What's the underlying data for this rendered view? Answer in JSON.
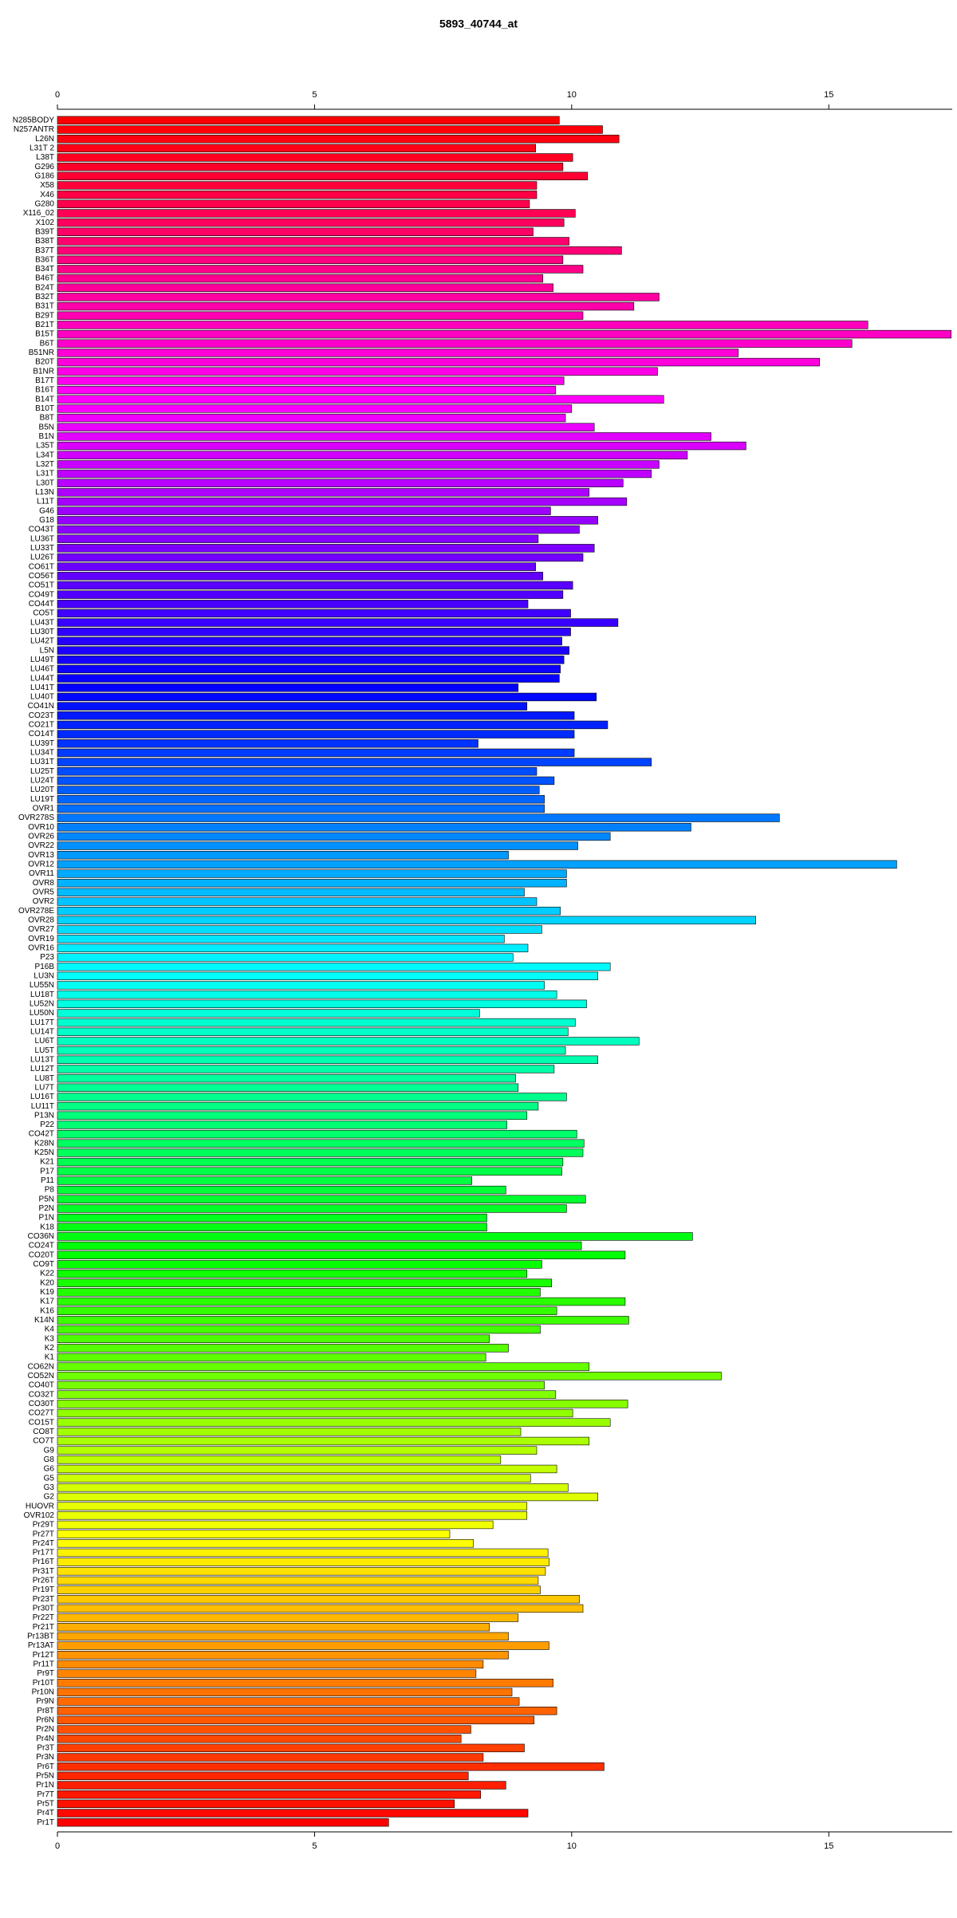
{
  "chart_data": {
    "type": "barh",
    "title": "5893_40744_at",
    "categories": [
      "N285BODY",
      "N257ANTR",
      "L26N",
      "L31T 2",
      "L38T",
      "G296",
      "G186",
      "X58",
      "X46",
      "G280",
      "X116_02",
      "X102",
      "B39T",
      "B38T",
      "B37T",
      "B36T",
      "B34T",
      "B46T",
      "B24T",
      "B32T",
      "B31T",
      "B29T",
      "B21T",
      "B15T",
      "B6T",
      "B51NR",
      "B20T",
      "B1NR",
      "B17T",
      "B16T",
      "B14T",
      "B10T",
      "B8T",
      "B5N",
      "B1N",
      "L35T",
      "L34T",
      "L32T",
      "L31T",
      "L30T",
      "L13N",
      "L11T",
      "G46",
      "G18",
      "CO43T",
      "LU36T",
      "LU33T",
      "LU26T",
      "CO61T",
      "CO56T",
      "CO51T",
      "CO49T",
      "CO44T",
      "CO5T",
      "LU43T",
      "LU30T",
      "LU42T",
      "L5N",
      "LU49T",
      "LU46T",
      "LU44T",
      "LU41T",
      "LU40T",
      "CO41N",
      "CO23T",
      "CO21T",
      "CO14T",
      "LU39T",
      "LU34T",
      "LU31T",
      "LU25T",
      "LU24T",
      "LU20T",
      "LU19T",
      "OVR1",
      "OVR278S",
      "OVR10",
      "OVR26",
      "OVR22",
      "OVR13",
      "OVR12",
      "OVR11",
      "OVR8",
      "OVR5",
      "OVR2",
      "OVR278E",
      "OVR28",
      "OVR27",
      "OVR19",
      "OVR16",
      "P23",
      "P16B",
      "LU3N",
      "LU55N",
      "LU18T",
      "LU52N",
      "LU50N",
      "LU17T",
      "LU14T",
      "LU6T",
      "LU5T",
      "LU13T",
      "LU12T",
      "LU8T",
      "LU7T",
      "LU16T",
      "LU11T",
      "P13N",
      "P22",
      "CO42T",
      "K28N",
      "K25N",
      "K21",
      "P17",
      "P11",
      "P8",
      "P5N",
      "P2N",
      "P1N",
      "K18",
      "CO36N",
      "CO24T",
      "CO20T",
      "CO9T",
      "K22",
      "K20",
      "K19",
      "K17",
      "K16",
      "K14N",
      "K4",
      "K3",
      "K2",
      "K1",
      "CO62N",
      "CO52N",
      "CO40T",
      "CO32T",
      "CO30T",
      "CO27T",
      "CO15T",
      "CO8T",
      "CO7T",
      "G9",
      "G8",
      "G6",
      "G5",
      "G3",
      "G2",
      "HUOVR",
      "OVR102",
      "Pr29T",
      "Pr27T",
      "Pr24T",
      "Pr17T",
      "Pr16T",
      "Pr31T",
      "Pr26T",
      "Pr19T",
      "Pr23T",
      "Pr30T",
      "Pr22T",
      "Pr21T",
      "Pr13BT",
      "Pr13AT",
      "Pr12T",
      "Pr11T",
      "Pr9T",
      "Pr10T",
      "Pr10N",
      "Pr9N",
      "Pr8T",
      "Pr6N",
      "Pr2N",
      "Pr4N",
      "Pr3T",
      "Pr3N",
      "Pr6T",
      "Pr5N",
      "Pr1N",
      "Pr7T",
      "Pr5T",
      "Pr4T",
      "Pr1T"
    ],
    "values": [
      9.76,
      10.6,
      10.92,
      9.3,
      10.02,
      9.83,
      10.31,
      9.32,
      9.32,
      9.18,
      10.07,
      9.85,
      9.25,
      9.95,
      10.97,
      9.83,
      10.22,
      9.44,
      9.64,
      11.7,
      11.21,
      10.22,
      15.76,
      17.38,
      15.45,
      13.24,
      14.82,
      11.67,
      9.85,
      9.69,
      11.79,
      10.0,
      9.88,
      10.44,
      12.71,
      13.39,
      12.25,
      11.7,
      11.55,
      11.0,
      10.34,
      11.07,
      9.59,
      10.51,
      10.15,
      9.35,
      10.44,
      10.22,
      9.3,
      9.44,
      10.02,
      9.83,
      9.15,
      9.98,
      10.9,
      9.98,
      9.81,
      9.95,
      9.85,
      9.78,
      9.76,
      8.96,
      10.48,
      9.13,
      10.05,
      10.7,
      10.05,
      8.18,
      10.05,
      11.55,
      9.32,
      9.66,
      9.37,
      9.47,
      9.47,
      14.04,
      12.32,
      10.75,
      10.12,
      8.77,
      16.32,
      9.9,
      9.9,
      9.08,
      9.32,
      9.78,
      13.58,
      9.42,
      8.69,
      9.15,
      8.86,
      10.75,
      10.51,
      9.47,
      9.71,
      10.29,
      8.21,
      10.07,
      9.93,
      11.31,
      9.88,
      10.51,
      9.66,
      8.91,
      8.96,
      9.9,
      9.35,
      9.13,
      8.74,
      10.1,
      10.24,
      10.22,
      9.83,
      9.81,
      8.06,
      8.72,
      10.27,
      9.9,
      8.35,
      8.35,
      12.35,
      10.19,
      11.04,
      9.42,
      9.13,
      9.61,
      9.39,
      11.04,
      9.71,
      11.11,
      9.39,
      8.4,
      8.77,
      8.33,
      10.34,
      12.91,
      9.47,
      9.69,
      11.09,
      10.02,
      10.75,
      9.01,
      10.34,
      9.32,
      8.62,
      9.71,
      9.2,
      9.93,
      10.51,
      9.13,
      9.13,
      8.47,
      7.63,
      8.09,
      9.54,
      9.56,
      9.49,
      9.35,
      9.39,
      10.15,
      10.22,
      8.96,
      8.4,
      8.77,
      9.56,
      8.77,
      8.28,
      8.14,
      9.64,
      8.84,
      8.98,
      9.71,
      9.27,
      8.04,
      7.85,
      9.08,
      8.28,
      10.63,
      7.99,
      8.72,
      8.23,
      7.72,
      9.15,
      6.44
    ],
    "colors": [
      "hsl(360,100%,50%)",
      "hsl(358,100%,50%)",
      "hsl(356,100%,50%)",
      "hsl(354,100%,50%)",
      "hsl(352,100%,50%)",
      "hsl(350,100%,50%)",
      "hsl(348,100%,50%)",
      "hsl(346,100%,50%)",
      "hsl(344,100%,50%)",
      "hsl(342,100%,50%)",
      "hsl(340,100%,50%)",
      "hsl(338,100%,50%)",
      "hsl(336,100%,50%)",
      "hsl(334,100%,50%)",
      "hsl(332,100%,50%)",
      "hsl(330,100%,50%)",
      "hsl(328,100%,50%)",
      "hsl(326,100%,50%)",
      "hsl(324,100%,50%)",
      "hsl(322,100%,50%)",
      "hsl(320,100%,50%)",
      "hsl(318,100%,50%)",
      "hsl(316,100%,50%)",
      "hsl(314,100%,50%)",
      "hsl(312,100%,50%)",
      "hsl(310,100%,50%)",
      "hsl(308,100%,50%)",
      "hsl(306,100%,50%)",
      "hsl(304,100%,50%)",
      "hsl(302,100%,50%)",
      "hsl(301,100%,50%)",
      "hsl(299,100%,50%)",
      "hsl(297,100%,50%)",
      "hsl(295,100%,50%)",
      "hsl(293,100%,50%)",
      "hsl(291,100%,50%)",
      "hsl(289,100%,50%)",
      "hsl(287,100%,50%)",
      "hsl(285,100%,50%)",
      "hsl(283,100%,50%)",
      "hsl(281,100%,50%)",
      "hsl(279,100%,50%)",
      "hsl(277,100%,50%)",
      "hsl(275,100%,50%)",
      "hsl(273,100%,50%)",
      "hsl(271,100%,50%)",
      "hsl(269,100%,50%)",
      "hsl(267,100%,50%)",
      "hsl(265,100%,50%)",
      "hsl(263,100%,50%)",
      "hsl(261,100%,50%)",
      "hsl(259,100%,50%)",
      "hsl(257,100%,50%)",
      "hsl(255,100%,50%)",
      "hsl(253,100%,50%)",
      "hsl(251,100%,50%)",
      "hsl(249,100%,50%)",
      "hsl(247,100%,50%)",
      "hsl(245,100%,50%)",
      "hsl(243,100%,50%)",
      "hsl(242,100%,50%)",
      "hsl(240,100%,50%)",
      "hsl(238,100%,50%)",
      "hsl(236,100%,50%)",
      "hsl(234,100%,50%)",
      "hsl(232,100%,50%)",
      "hsl(230,100%,50%)",
      "hsl(228,100%,50%)",
      "hsl(226,100%,50%)",
      "hsl(224,100%,50%)",
      "hsl(222,100%,50%)",
      "hsl(220,100%,50%)",
      "hsl(218,100%,50%)",
      "hsl(216,100%,50%)",
      "hsl(214,100%,50%)",
      "hsl(212,100%,50%)",
      "hsl(210,100%,50%)",
      "hsl(208,100%,50%)",
      "hsl(206,100%,50%)",
      "hsl(204,100%,50%)",
      "hsl(202,100%,50%)",
      "hsl(200,100%,50%)",
      "hsl(198,100%,50%)",
      "hsl(196,100%,50%)",
      "hsl(194,100%,50%)",
      "hsl(192,100%,50%)",
      "hsl(190,100%,50%)",
      "hsl(188,100%,50%)",
      "hsl(186,100%,50%)",
      "hsl(184,100%,50%)",
      "hsl(183,100%,50%)",
      "hsl(181,100%,50%)",
      "hsl(179,100%,50%)",
      "hsl(177,100%,50%)",
      "hsl(175,100%,50%)",
      "hsl(173,100%,50%)",
      "hsl(171,100%,50%)",
      "hsl(169,100%,50%)",
      "hsl(167,100%,50%)",
      "hsl(165,100%,50%)",
      "hsl(163,100%,50%)",
      "hsl(161,100%,50%)",
      "hsl(159,100%,50%)",
      "hsl(157,100%,50%)",
      "hsl(155,100%,50%)",
      "hsl(153,100%,50%)",
      "hsl(151,100%,50%)",
      "hsl(149,100%,50%)",
      "hsl(147,100%,50%)",
      "hsl(145,100%,50%)",
      "hsl(143,100%,50%)",
      "hsl(141,100%,50%)",
      "hsl(139,100%,50%)",
      "hsl(137,100%,50%)",
      "hsl(135,100%,50%)",
      "hsl(133,100%,50%)",
      "hsl(131,100%,50%)",
      "hsl(129,100%,50%)",
      "hsl(127,100%,50%)",
      "hsl(125,100%,50%)",
      "hsl(124,100%,50%)",
      "hsl(122,100%,50%)",
      "hsl(120,100%,50%)",
      "hsl(118,100%,50%)",
      "hsl(116,100%,50%)",
      "hsl(114,100%,50%)",
      "hsl(112,100%,50%)",
      "hsl(110,100%,50%)",
      "hsl(108,100%,50%)",
      "hsl(106,100%,50%)",
      "hsl(104,100%,50%)",
      "hsl(102,100%,50%)",
      "hsl(100,100%,50%)",
      "hsl(98,100%,50%)",
      "hsl(96,100%,50%)",
      "hsl(94,100%,50%)",
      "hsl(92,100%,50%)",
      "hsl(90,100%,50%)",
      "hsl(88,100%,50%)",
      "hsl(86,100%,50%)",
      "hsl(84,100%,50%)",
      "hsl(82,100%,50%)",
      "hsl(80,100%,50%)",
      "hsl(78,100%,50%)",
      "hsl(76,100%,50%)",
      "hsl(74,100%,50%)",
      "hsl(72,100%,50%)",
      "hsl(70,100%,50%)",
      "hsl(68,100%,50%)",
      "hsl(66,100%,50%)",
      "hsl(65,100%,50%)",
      "hsl(63,100%,50%)",
      "hsl(61,100%,50%)",
      "hsl(59,100%,50%)",
      "hsl(57,100%,50%)",
      "hsl(55,100%,50%)",
      "hsl(53,100%,50%)",
      "hsl(51,100%,50%)",
      "hsl(49,100%,50%)",
      "hsl(47,100%,50%)",
      "hsl(45,100%,50%)",
      "hsl(43,100%,50%)",
      "hsl(41,100%,50%)",
      "hsl(39,100%,50%)",
      "hsl(37,100%,50%)",
      "hsl(35,100%,50%)",
      "hsl(33,100%,50%)",
      "hsl(31,100%,50%)",
      "hsl(29,100%,50%)",
      "hsl(27,100%,50%)",
      "hsl(25,100%,50%)",
      "hsl(23,100%,50%)",
      "hsl(21,100%,50%)",
      "hsl(19,100%,50%)",
      "hsl(17,100%,50%)",
      "hsl(15,100%,50%)",
      "hsl(13,100%,50%)",
      "hsl(11,100%,50%)",
      "hsl(9,100%,50%)",
      "hsl(7,100%,50%)",
      "hsl(6,100%,50%)",
      "hsl(4,100%,50%)",
      "hsl(2,100%,50%)",
      "hsl(0,100%,50%)"
    ],
    "xlim": [
      0,
      17.4
    ],
    "xticks": [
      0,
      5,
      10,
      15
    ]
  }
}
